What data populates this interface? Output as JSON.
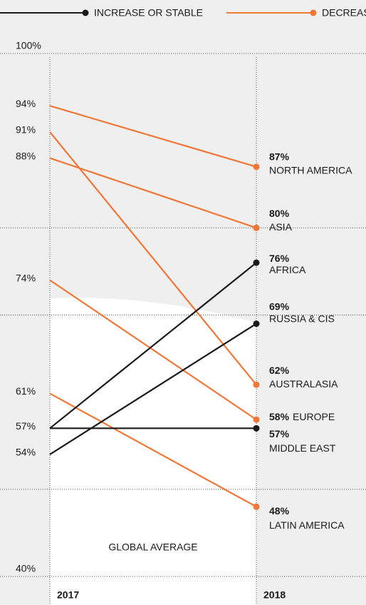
{
  "chart_data": {
    "type": "slope",
    "legend": [
      {
        "label": "INCREASE OR STABLE",
        "color": "#1a1a1a"
      },
      {
        "label": "DECREASE",
        "color": "#f27636"
      }
    ],
    "categories": [
      "2017",
      "2018"
    ],
    "series": [
      {
        "name": "NORTH AMERICA",
        "color": "#f27636",
        "values": [
          94,
          87
        ],
        "value_labels": [
          "94%",
          "87%"
        ]
      },
      {
        "name": "AUSTRALASIA",
        "color": "#f27636",
        "values": [
          91,
          62
        ],
        "value_labels": [
          "91%",
          "62%"
        ]
      },
      {
        "name": "ASIA",
        "color": "#f27636",
        "values": [
          88,
          80
        ],
        "value_labels": [
          "88%",
          "80%"
        ]
      },
      {
        "name": "EUROPE",
        "color": "#f27636",
        "values": [
          74,
          58
        ],
        "value_labels": [
          "74%",
          "58%"
        ]
      },
      {
        "name": "LATIN AMERICA",
        "color": "#f27636",
        "values": [
          61,
          48
        ],
        "value_labels": [
          "61%",
          "48%"
        ]
      },
      {
        "name": "AFRICA",
        "color": "#1a1a1a",
        "values": [
          57,
          76
        ],
        "value_labels": [
          null,
          "76%"
        ]
      },
      {
        "name": "RUSSIA & CIS",
        "color": "#1a1a1a",
        "values": [
          54,
          69
        ],
        "value_labels": [
          "54%",
          "69%"
        ]
      },
      {
        "name": "MIDDLE EAST",
        "color": "#1a1a1a",
        "values": [
          57,
          57
        ],
        "value_labels": [
          "57%",
          "57%"
        ]
      }
    ],
    "ylim": [
      40,
      100
    ],
    "yticks": [
      {
        "value": 100,
        "label": "100%"
      },
      {
        "value": 40,
        "label": "40%"
      }
    ],
    "grid_lines": [
      100,
      80,
      70,
      50,
      40
    ],
    "annotation": "GLOBAL AVERAGE"
  }
}
